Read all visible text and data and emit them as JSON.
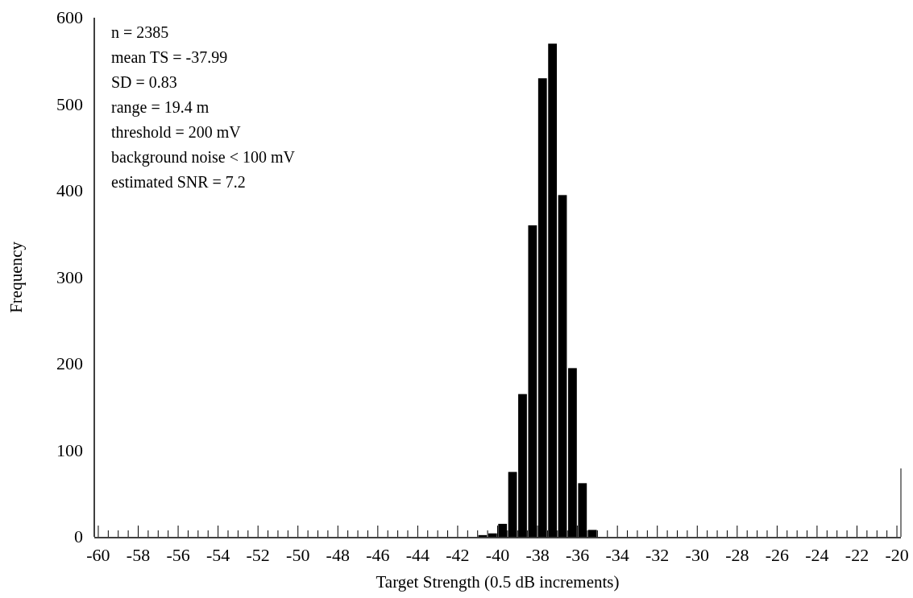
{
  "chart_data": {
    "type": "histogram",
    "xlabel": "Target Strength (0.5 dB increments)",
    "ylabel": "Frequency",
    "bins": [
      -41,
      -40.5,
      -40,
      -39.5,
      -39,
      -38.5,
      -38,
      -37.5,
      -37,
      -36.5,
      -36,
      -35.5,
      -35
    ],
    "values": [
      2,
      4,
      15,
      75,
      165,
      360,
      530,
      570,
      395,
      195,
      62,
      8
    ],
    "color": "#000000",
    "xlim": [
      -60.2,
      -19.8
    ],
    "xticks": [
      -60,
      {
        "value": -59.5,
        "label": null
      },
      {
        "value": -59,
        "label": null
      },
      {
        "value": -58.5,
        "label": null
      },
      -58,
      {
        "value": -57.5,
        "label": null
      },
      {
        "value": -57,
        "label": null
      },
      {
        "value": -56.5,
        "label": null
      },
      -56,
      {
        "value": -55.5,
        "label": null
      },
      {
        "value": -55,
        "label": null
      },
      {
        "value": -54.5,
        "label": null
      },
      -54,
      {
        "value": -53.5,
        "label": null
      },
      {
        "value": -53,
        "label": null
      },
      {
        "value": -52.5,
        "label": null
      },
      -52,
      {
        "value": -51.5,
        "label": null
      },
      {
        "value": -51,
        "label": null
      },
      {
        "value": -50.5,
        "label": null
      },
      -50,
      {
        "value": -49.5,
        "label": null
      },
      {
        "value": -49,
        "label": null
      },
      {
        "value": -48.5,
        "label": null
      },
      -48,
      {
        "value": -47.5,
        "label": null
      },
      {
        "value": -47,
        "label": null
      },
      {
        "value": -46.5,
        "label": null
      },
      -46,
      {
        "value": -45.5,
        "label": null
      },
      {
        "value": -45,
        "label": null
      },
      {
        "value": -44.5,
        "label": null
      },
      -44,
      {
        "value": -43.5,
        "label": null
      },
      {
        "value": -43,
        "label": null
      },
      {
        "value": -42.5,
        "label": null
      },
      -42,
      {
        "value": -41.5,
        "label": null
      },
      {
        "value": -41,
        "label": null
      },
      {
        "value": -40.5,
        "label": null
      },
      -40,
      {
        "value": -39.5,
        "label": null
      },
      {
        "value": -39,
        "label": null
      },
      {
        "value": -38.5,
        "label": null
      },
      -38,
      {
        "value": -37.5,
        "label": null
      },
      {
        "value": -37,
        "label": null
      },
      {
        "value": -36.5,
        "label": null
      },
      -36,
      {
        "value": -35.5,
        "label": null
      },
      {
        "value": -35,
        "label": null
      },
      {
        "value": -34.5,
        "label": null
      },
      -34,
      {
        "value": -33.5,
        "label": null
      },
      {
        "value": -33,
        "label": null
      },
      {
        "value": -32.5,
        "label": null
      },
      -32,
      {
        "value": -31.5,
        "label": null
      },
      {
        "value": -31,
        "label": null
      },
      {
        "value": -30.5,
        "label": null
      },
      -30,
      {
        "value": -29.5,
        "label": null
      },
      {
        "value": -29,
        "label": null
      },
      {
        "value": -28.5,
        "label": null
      },
      -28,
      {
        "value": -27.5,
        "label": null
      },
      {
        "value": -27,
        "label": null
      },
      {
        "value": -26.5,
        "label": null
      },
      -26,
      {
        "value": -25.5,
        "label": null
      },
      {
        "value": -25,
        "label": null
      },
      {
        "value": -24.5,
        "label": null
      },
      -24,
      {
        "value": -23.5,
        "label": null
      },
      {
        "value": -23,
        "label": null
      },
      {
        "value": -22.5,
        "label": null
      },
      -22,
      {
        "value": -21.5,
        "label": null
      },
      {
        "value": -21,
        "label": null
      },
      {
        "value": -20.5,
        "label": null
      },
      -20
    ],
    "ylim": [
      0,
      600
    ],
    "yticks": [
      0,
      100,
      200,
      300,
      400,
      500,
      600
    ],
    "annotations": [
      "n = 2385",
      "mean TS = -37.99",
      "SD = 0.83",
      "range = 19.4 m",
      "threshold = 200 mV",
      "background noise < 100 mV",
      "estimated SNR = 7.2"
    ]
  }
}
